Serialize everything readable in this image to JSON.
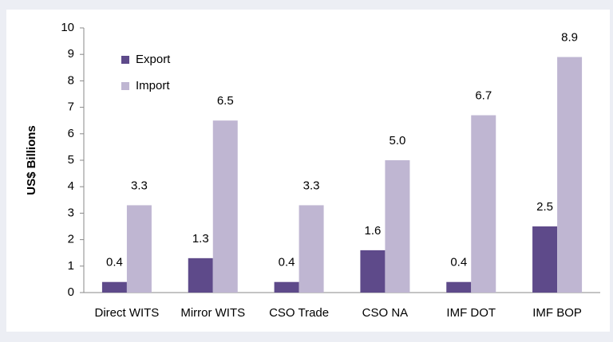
{
  "chart_data": {
    "type": "bar",
    "categories": [
      "Direct WITS",
      "Mirror WITS",
      "CSO Trade",
      "CSO NA",
      "IMF DOT",
      "IMF BOP"
    ],
    "series": [
      {
        "name": "Export",
        "color": "#5e4a8a",
        "values": [
          0.4,
          1.3,
          0.4,
          1.6,
          0.4,
          2.5
        ],
        "value_labels": [
          "0.4",
          "1.3",
          "0.4",
          "1.6",
          "0.4",
          "2.5"
        ]
      },
      {
        "name": "Import",
        "color": "#bfb6d2",
        "values": [
          3.3,
          6.5,
          3.3,
          5,
          6.7,
          8.9
        ],
        "value_labels": [
          "3.3",
          "6.5",
          "3.3",
          "5.0",
          "6.7",
          "8.9"
        ]
      }
    ],
    "y_label": "US$ Billions",
    "ylim": [
      0,
      10
    ],
    "yticks": [
      0,
      1,
      2,
      3,
      4,
      5,
      6,
      7,
      8,
      9,
      10
    ],
    "legend": "upper-left"
  }
}
